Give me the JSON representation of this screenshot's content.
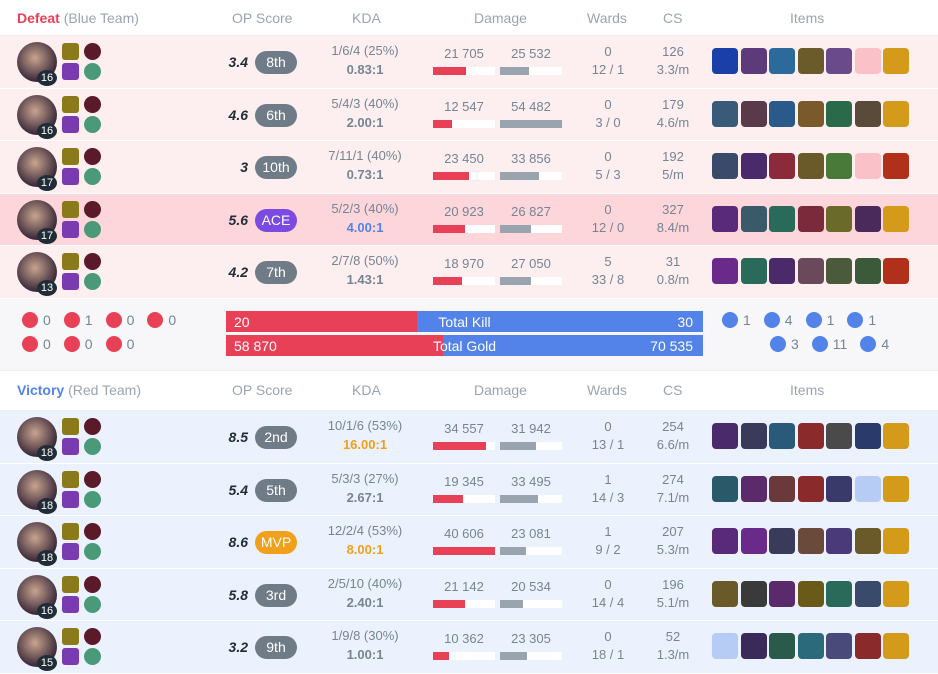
{
  "headers": {
    "op": "OP Score",
    "kda": "KDA",
    "damage": "Damage",
    "wards": "Wards",
    "cs": "CS",
    "items": "Items"
  },
  "colors": {
    "red": "#e84057",
    "blue": "#5383e8"
  },
  "blue_team": {
    "result": "Defeat",
    "name": "(Blue Team)",
    "players": [
      {
        "level": "16",
        "score": "3.4",
        "rank": "8th",
        "kda": "1/6/4 (25%)",
        "ratio": "0.83:1",
        "dealt": "21 705",
        "taken": "25 532",
        "dealt_v": 21705,
        "taken_v": 25532,
        "wards": "0",
        "wards2": "12 / 1",
        "cs": "126",
        "csm": "3.3/m",
        "items": [
          "#1a3fa8",
          "#5d3a7a",
          "#2b6a9a",
          "#6b5a2a",
          "#6a4a8a",
          "empty",
          "#d49a1a"
        ]
      },
      {
        "level": "16",
        "score": "4.6",
        "rank": "6th",
        "kda": "5/4/3 (40%)",
        "ratio": "2.00:1",
        "dealt": "12 547",
        "taken": "54 482",
        "dealt_v": 12547,
        "taken_v": 54482,
        "wards": "0",
        "wards2": "3 / 0",
        "cs": "179",
        "csm": "4.6/m",
        "items": [
          "#3a5a7a",
          "#5a3a4a",
          "#2a5a8a",
          "#7a5a2a",
          "#2a6a4a",
          "#5a4a3a",
          "#d49a1a"
        ]
      },
      {
        "level": "17",
        "score": "3",
        "rank": "10th",
        "kda": "7/11/1 (40%)",
        "ratio": "0.73:1",
        "dealt": "23 450",
        "taken": "33 856",
        "dealt_v": 23450,
        "taken_v": 33856,
        "wards": "0",
        "wards2": "5 / 3",
        "cs": "192",
        "csm": "5/m",
        "items": [
          "#3a4a6a",
          "#4a2a6a",
          "#8a2a3a",
          "#6a5a2a",
          "#4a7a3a",
          "empty",
          "#b0301a"
        ]
      },
      {
        "me": true,
        "level": "17",
        "score": "5.6",
        "rank": "ACE",
        "kda": "5/2/3 (40%)",
        "ratio": "4.00:1",
        "dealt": "20 923",
        "taken": "26 827",
        "dealt_v": 20923,
        "taken_v": 26827,
        "wards": "0",
        "wards2": "12 / 0",
        "cs": "327",
        "csm": "8.4/m",
        "items": [
          "#5a2a7a",
          "#3a5a6a",
          "#2a6a5a",
          "#7a2a3a",
          "#6a6a2a",
          "#4a2a5a",
          "#d49a1a"
        ]
      },
      {
        "level": "13",
        "score": "4.2",
        "rank": "7th",
        "kda": "2/7/8 (50%)",
        "ratio": "1.43:1",
        "dealt": "18 970",
        "taken": "27 050",
        "dealt_v": 18970,
        "taken_v": 27050,
        "wards": "5",
        "wards2": "33 / 8",
        "cs": "31",
        "csm": "0.8/m",
        "items": [
          "#6a2a8a",
          "#2a6a5a",
          "#4a2a6a",
          "#6a4a5a",
          "#4a5a3a",
          "#3a5a3a",
          "#b0301a"
        ]
      }
    ]
  },
  "summary": {
    "red_obj": [
      [
        "0",
        "1",
        "0",
        "0"
      ],
      [
        "0",
        "0",
        "0"
      ]
    ],
    "kill": {
      "left": "20",
      "label": "Total Kill",
      "right": "30",
      "left_v": 20,
      "right_v": 30
    },
    "gold": {
      "left": "58 870",
      "label": "Total Gold",
      "right": "70 535",
      "left_v": 58870,
      "right_v": 70535
    },
    "blue_obj": [
      [
        "1",
        "4",
        "1",
        "1"
      ],
      [
        "3",
        "11",
        "4"
      ]
    ]
  },
  "red_team": {
    "result": "Victory",
    "name": "(Red Team)",
    "players": [
      {
        "level": "18",
        "score": "8.5",
        "rank": "2nd",
        "kda": "10/1/6 (53%)",
        "ratio": "16.00:1",
        "ratio_color": "#f0a01b",
        "dealt": "34 557",
        "taken": "31 942",
        "dealt_v": 34557,
        "taken_v": 31942,
        "wards": "0",
        "wards2": "13 / 1",
        "cs": "254",
        "csm": "6.6/m",
        "items": [
          "#4a2a6a",
          "#3a3a5a",
          "#2a5a7a",
          "#8a2a2a",
          "#4a4a4a",
          "#2a3a6a",
          "#d49a1a"
        ]
      },
      {
        "level": "18",
        "score": "5.4",
        "rank": "5th",
        "kda": "5/3/3 (27%)",
        "ratio": "2.67:1",
        "dealt": "19 345",
        "taken": "33 495",
        "dealt_v": 19345,
        "taken_v": 33495,
        "wards": "1",
        "wards2": "14 / 3",
        "cs": "274",
        "csm": "7.1/m",
        "items": [
          "#2a5a6a",
          "#5a2a6a",
          "#6a3a3a",
          "#8a2a2a",
          "#3a3a6a",
          "empty",
          "#d49a1a"
        ]
      },
      {
        "level": "18",
        "score": "8.6",
        "rank": "MVP",
        "kda": "12/2/4 (53%)",
        "ratio": "8.00:1",
        "ratio_color": "#f0a01b",
        "dealt": "40 606",
        "taken": "23 081",
        "dealt_v": 40606,
        "taken_v": 23081,
        "wards": "1",
        "wards2": "9 / 2",
        "cs": "207",
        "csm": "5.3/m",
        "items": [
          "#5a2a7a",
          "#6a2a8a",
          "#3a3a5a",
          "#6a4a3a",
          "#4a3a7a",
          "#6a5a2a",
          "#d49a1a"
        ]
      },
      {
        "level": "16",
        "score": "5.8",
        "rank": "3rd",
        "kda": "2/5/10 (40%)",
        "ratio": "2.40:1",
        "dealt": "21 142",
        "taken": "20 534",
        "dealt_v": 21142,
        "taken_v": 20534,
        "wards": "0",
        "wards2": "14 / 4",
        "cs": "196",
        "csm": "5.1/m",
        "items": [
          "#6a5a2a",
          "#3a3a3a",
          "#5a2a6a",
          "#6a5a1a",
          "#2a6a5a",
          "#3a4a6a",
          "#d49a1a"
        ]
      },
      {
        "level": "15",
        "score": "3.2",
        "rank": "9th",
        "kda": "1/9/8 (30%)",
        "ratio": "1.00:1",
        "dealt": "10 362",
        "taken": "23 305",
        "dealt_v": 10362,
        "taken_v": 23305,
        "wards": "0",
        "wards2": "18 / 1",
        "cs": "52",
        "csm": "1.3/m",
        "items": [
          "empty",
          "#3a2a5a",
          "#2a5a4a",
          "#2a6a7a",
          "#4a4a7a",
          "#8a2a2a",
          "#d49a1a"
        ]
      }
    ]
  }
}
